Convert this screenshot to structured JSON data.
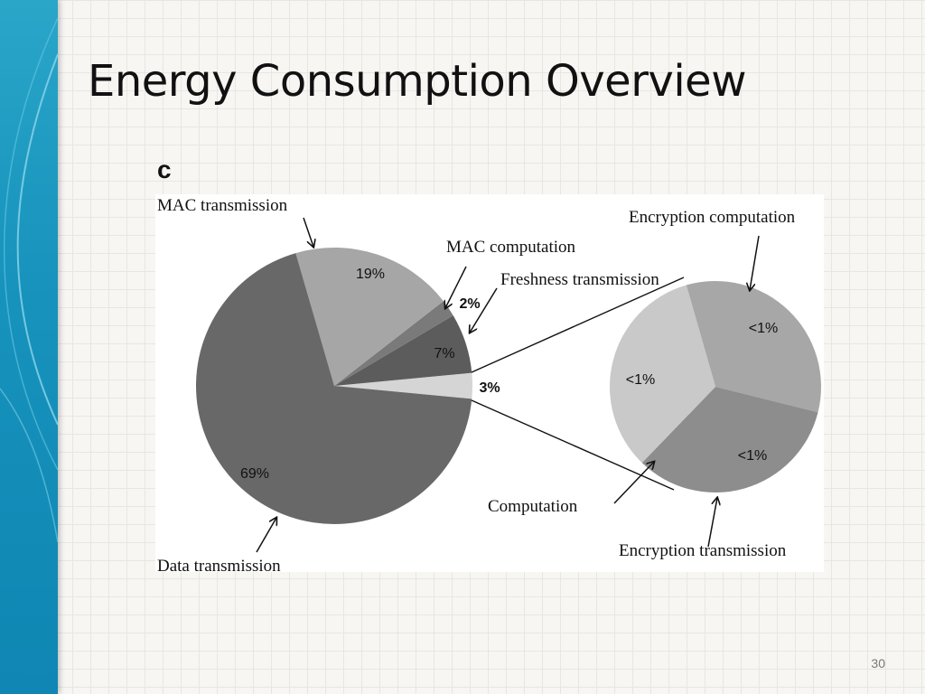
{
  "slide": {
    "title": "Energy Consumption Overview",
    "panel_letter": "c",
    "page_number": "30"
  },
  "colors": {
    "side_band": "#1793bd",
    "slice_dark": "#686868",
    "slice_mid": "#a7a7a7",
    "slice_light": "#d5d5d5"
  },
  "chart_data": {
    "type": "pie",
    "title": "",
    "main_pie": {
      "slices": [
        {
          "label": "Data transmission",
          "percent_label": "69%",
          "value": 69,
          "color": "#686868"
        },
        {
          "label": "MAC transmission",
          "percent_label": "19%",
          "value": 19,
          "color": "#a6a6a6"
        },
        {
          "label": "MAC computation",
          "percent_label": "2%",
          "value": 2,
          "color": "#7a7a7a"
        },
        {
          "label": "Freshness transmission",
          "percent_label": "7%",
          "value": 7,
          "color": "#5c5c5c"
        },
        {
          "label": "Computation",
          "percent_label": "3%",
          "value": 3,
          "color": "#d5d5d5"
        }
      ]
    },
    "exploded_pie": {
      "parent": "Computation",
      "slices": [
        {
          "label": "Encryption computation",
          "percent_label": "<1%",
          "value": 1,
          "color": "#a7a7a7"
        },
        {
          "label": "Encryption transmission",
          "percent_label": "<1%",
          "value": 1,
          "color": "#8d8d8d"
        },
        {
          "label": "Computation",
          "percent_label": "<1%",
          "value": 1,
          "color": "#c9c9c9"
        }
      ]
    }
  }
}
